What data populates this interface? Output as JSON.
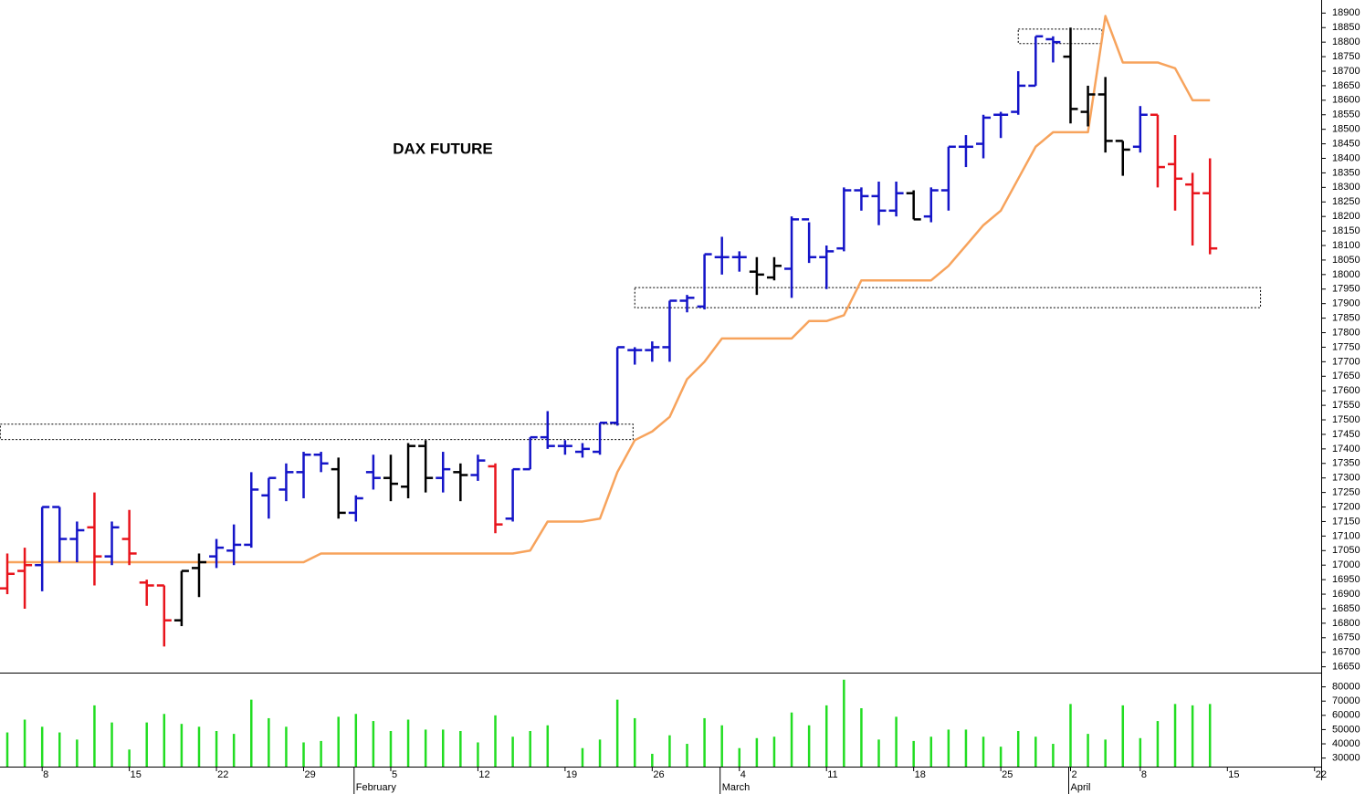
{
  "chart_data": {
    "type": "ohlc",
    "title": "DAX FUTURE",
    "categories": [
      null,
      null,
      "8",
      null,
      null,
      null,
      null,
      "15",
      null,
      null,
      null,
      null,
      "22",
      null,
      null,
      null,
      null,
      "29",
      null,
      null,
      null,
      null,
      "5",
      null,
      null,
      null,
      null,
      "12",
      null,
      null,
      null,
      null,
      "19",
      null,
      null,
      null,
      null,
      "26",
      null,
      null,
      null,
      null,
      "4",
      null,
      null,
      null,
      null,
      "11",
      null,
      null,
      null,
      null,
      "18",
      null,
      null,
      null,
      null,
      "25",
      null,
      null,
      null,
      "2",
      null,
      null,
      null,
      "8",
      null,
      null,
      null,
      null,
      "15",
      null,
      null,
      null,
      null,
      "22"
    ],
    "months": [
      null,
      null,
      null,
      null,
      null,
      null,
      null,
      null,
      null,
      null,
      null,
      null,
      null,
      null,
      null,
      null,
      null,
      null,
      null,
      null,
      "February",
      null,
      null,
      null,
      null,
      null,
      null,
      null,
      null,
      null,
      null,
      null,
      null,
      null,
      null,
      null,
      null,
      null,
      null,
      null,
      null,
      "March",
      null,
      null,
      null,
      null,
      null,
      null,
      null,
      null,
      null,
      null,
      null,
      null,
      null,
      null,
      null,
      null,
      null,
      null,
      null,
      "April",
      null,
      null,
      null,
      null,
      null,
      null,
      null,
      null,
      null,
      null,
      null,
      null,
      null,
      null
    ],
    "open": [
      16920,
      16980,
      17000,
      17200,
      17090,
      17130,
      17030,
      17090,
      16940,
      16930,
      16810,
      16990,
      17030,
      17050,
      17070,
      17240,
      17260,
      17320,
      17380,
      17330,
      17180,
      17320,
      17300,
      17270,
      17410,
      17300,
      17320,
      17310,
      17340,
      17160,
      17330,
      17440,
      17410,
      17390,
      17390,
      17490,
      17740,
      17740,
      17750,
      17910,
      17890,
      18060,
      18060,
      18010,
      17990,
      18020,
      18190,
      18060,
      18090,
      18290,
      18270,
      18220,
      18280,
      18200,
      18290,
      18440,
      18450,
      18550,
      18560,
      18650,
      18810,
      18750,
      18560,
      18620,
      18460,
      18440,
      18550,
      18380,
      18310,
      18280,
      null,
      null,
      null,
      null,
      null,
      null
    ],
    "high": [
      17040,
      17060,
      17200,
      17200,
      17150,
      17250,
      17150,
      17190,
      16950,
      16930,
      16980,
      17040,
      17090,
      17140,
      17320,
      17300,
      17350,
      17390,
      17390,
      17370,
      17240,
      17380,
      17380,
      17420,
      17430,
      17390,
      17350,
      17380,
      17350,
      17330,
      17440,
      17530,
      17430,
      17420,
      17490,
      17750,
      17750,
      17770,
      17910,
      17930,
      18070,
      18130,
      18080,
      18060,
      18060,
      18200,
      18180,
      18100,
      18300,
      18300,
      18320,
      18320,
      18290,
      18300,
      18440,
      18480,
      18550,
      18560,
      18700,
      18820,
      18820,
      18850,
      18650,
      18680,
      18460,
      18580,
      18550,
      18480,
      18350,
      18400,
      null,
      null,
      null,
      null,
      null,
      null
    ],
    "low": [
      16900,
      16850,
      16910,
      17010,
      17010,
      16930,
      17000,
      17000,
      16860,
      16720,
      16790,
      16890,
      16990,
      17000,
      17060,
      17160,
      17220,
      17230,
      17320,
      17160,
      17150,
      17260,
      17220,
      17230,
      17250,
      17250,
      17220,
      17290,
      17110,
      17150,
      17330,
      17400,
      17380,
      17370,
      17380,
      17480,
      17690,
      17700,
      17700,
      17870,
      17880,
      18000,
      18010,
      17930,
      17980,
      17920,
      18040,
      17950,
      18080,
      18220,
      18170,
      18200,
      18190,
      18180,
      18220,
      18370,
      18400,
      18470,
      18550,
      18650,
      18730,
      18520,
      18510,
      18420,
      18340,
      18420,
      18300,
      18220,
      18100,
      18070,
      null,
      null,
      null,
      null,
      null,
      null
    ],
    "close": [
      16970,
      17000,
      17200,
      17090,
      17120,
      17030,
      17130,
      17040,
      16930,
      16810,
      16980,
      17010,
      17060,
      17070,
      17260,
      17300,
      17320,
      17380,
      17350,
      17180,
      17230,
      17300,
      17280,
      17410,
      17300,
      17330,
      17310,
      17360,
      17140,
      17330,
      17440,
      17410,
      17410,
      17400,
      17490,
      17750,
      17740,
      17750,
      17910,
      17920,
      18070,
      18060,
      18060,
      18000,
      18030,
      18190,
      18060,
      18080,
      18290,
      18270,
      18220,
      18280,
      18190,
      18290,
      18440,
      18440,
      18540,
      18550,
      18650,
      18820,
      18800,
      18570,
      18620,
      18460,
      18430,
      18550,
      18370,
      18330,
      18280,
      18090,
      null,
      null,
      null,
      null,
      null,
      null
    ],
    "colors": [
      "#e8141c",
      "#e8141c",
      "#1414c8",
      "#1414c8",
      "#1414c8",
      "#e8141c",
      "#1414c8",
      "#e8141c",
      "#e8141c",
      "#e8141c",
      "#000000",
      "#000000",
      "#1414c8",
      "#1414c8",
      "#1414c8",
      "#1414c8",
      "#1414c8",
      "#1414c8",
      "#1414c8",
      "#000000",
      "#1414c8",
      "#1414c8",
      "#000000",
      "#000000",
      "#000000",
      "#1414c8",
      "#000000",
      "#1414c8",
      "#e8141c",
      "#1414c8",
      "#1414c8",
      "#1414c8",
      "#1414c8",
      "#1414c8",
      "#1414c8",
      "#1414c8",
      "#1414c8",
      "#1414c8",
      "#1414c8",
      "#1414c8",
      "#1414c8",
      "#1414c8",
      "#1414c8",
      "#000000",
      "#000000",
      "#1414c8",
      "#1414c8",
      "#1414c8",
      "#1414c8",
      "#1414c8",
      "#1414c8",
      "#1414c8",
      "#000000",
      "#1414c8",
      "#1414c8",
      "#1414c8",
      "#1414c8",
      "#1414c8",
      "#1414c8",
      "#1414c8",
      "#1414c8",
      "#000000",
      "#000000",
      "#000000",
      "#000000",
      "#1414c8",
      "#e8141c",
      "#e8141c",
      "#e8141c",
      "#e8141c",
      null,
      null,
      null,
      null,
      null,
      null
    ],
    "stop": {
      "color": "#f7a35c",
      "values": [
        17010,
        17010,
        17010,
        17010,
        17010,
        17010,
        17010,
        17010,
        17010,
        17010,
        17010,
        17010,
        17010,
        17010,
        17010,
        17010,
        17010,
        17010,
        17040,
        17040,
        17040,
        17040,
        17040,
        17040,
        17040,
        17040,
        17040,
        17040,
        17040,
        17040,
        17050,
        17150,
        17150,
        17150,
        17160,
        17320,
        17430,
        17460,
        17510,
        17640,
        17700,
        17780,
        17780,
        17780,
        17780,
        17780,
        17840,
        17840,
        17860,
        17980,
        17980,
        17980,
        17980,
        17980,
        18030,
        18100,
        18170,
        18220,
        18330,
        18440,
        18490,
        18490,
        18490,
        18890,
        18730,
        18730,
        18730,
        18710,
        18600,
        18600,
        null,
        null,
        null,
        null,
        null,
        null
      ]
    },
    "ylim": [
      16630,
      18945
    ],
    "yticks": [
      16650,
      16700,
      16750,
      16800,
      16850,
      16900,
      16950,
      17000,
      17050,
      17100,
      17150,
      17200,
      17250,
      17300,
      17350,
      17400,
      17450,
      17500,
      17550,
      17600,
      17650,
      17700,
      17750,
      17800,
      17850,
      17900,
      17950,
      18000,
      18050,
      18100,
      18150,
      18200,
      18250,
      18300,
      18350,
      18400,
      18450,
      18500,
      18550,
      18600,
      18650,
      18700,
      18750,
      18800,
      18850,
      18900
    ],
    "zones": [
      {
        "x": [
          -0.4,
          35.9
        ],
        "y": [
          17432,
          17485
        ]
      },
      {
        "x": [
          36,
          71.9
        ],
        "y": [
          17886,
          17955
        ]
      },
      {
        "x": [
          58,
          62.8
        ],
        "y": [
          18795,
          18845
        ]
      }
    ],
    "volume": {
      "color": "#22dd22",
      "values": [
        48000,
        57000,
        52000,
        48000,
        43000,
        67000,
        55000,
        36000,
        55000,
        61000,
        54000,
        52000,
        49000,
        47000,
        71000,
        58000,
        52000,
        41000,
        42000,
        59000,
        61000,
        56000,
        49000,
        57000,
        50000,
        50000,
        49000,
        41000,
        60000,
        45000,
        49000,
        53000,
        null,
        37000,
        43000,
        71000,
        58000,
        33000,
        46000,
        40000,
        58000,
        53000,
        37000,
        44000,
        45000,
        62000,
        53000,
        67000,
        85000,
        65000,
        43000,
        59000,
        42000,
        45000,
        50000,
        50000,
        45000,
        38000,
        49000,
        45000,
        40000,
        68000,
        47000,
        43000,
        67000,
        44000,
        56000,
        68000,
        67000,
        68000,
        null,
        null,
        null,
        null,
        null,
        null
      ],
      "ylim": [
        24000,
        90000
      ],
      "yticks": [
        30000,
        40000,
        50000,
        60000,
        70000,
        80000
      ]
    }
  }
}
